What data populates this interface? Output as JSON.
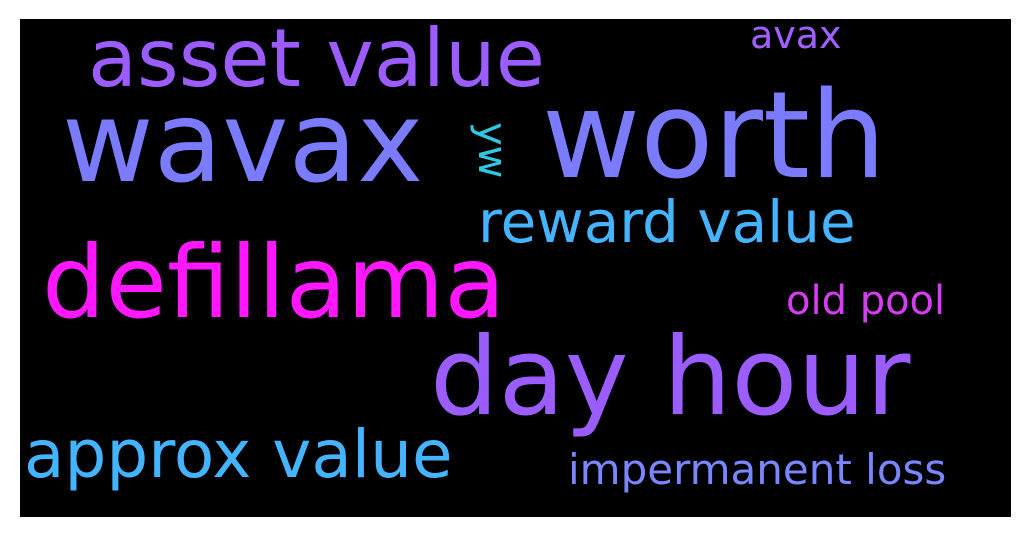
{
  "words": [
    {
      "text": "asset value",
      "color": "#9B5DFF"
    },
    {
      "text": "avax",
      "color": "#A060FF"
    },
    {
      "text": "wavax",
      "color": "#7A7BFF"
    },
    {
      "text": "worth",
      "color": "#7A7BFF"
    },
    {
      "text": "yw",
      "color": "#2EC9E0"
    },
    {
      "text": "reward value",
      "color": "#45B4FF"
    },
    {
      "text": "defillama",
      "color": "#FF17FF"
    },
    {
      "text": "old pool",
      "color": "#D63CF2"
    },
    {
      "text": "day hour",
      "color": "#9B5DFF"
    },
    {
      "text": "approx value",
      "color": "#45B4FF"
    },
    {
      "text": "impermanent loss",
      "color": "#7A86FF"
    }
  ]
}
